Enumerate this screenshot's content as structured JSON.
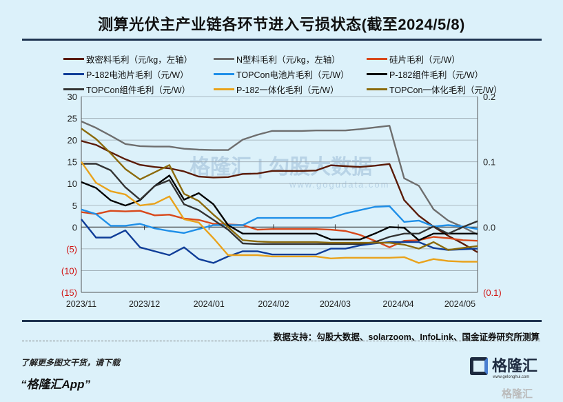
{
  "chart_data": {
    "type": "line",
    "title": "测算光伏主产业链各环节进入亏损状态(截至2024/5/8)",
    "x_tick_labels": [
      "2023/11",
      "2023/12",
      "2024/01",
      "2024/02",
      "2024/03",
      "2024/04",
      "2024/05"
    ],
    "x_tick_index": [
      0,
      4.3,
      8.7,
      13.1,
      17.3,
      21.6,
      25.8
    ],
    "n_points": 28,
    "y_left": {
      "range": [
        -15,
        30
      ],
      "ticks": [
        30,
        25,
        20,
        15,
        10,
        5,
        0,
        -5,
        -10,
        -15
      ],
      "tick_labels": [
        "30",
        "25",
        "20",
        "15",
        "10",
        "5",
        "0",
        "(5)",
        "(10)",
        "(15)"
      ]
    },
    "y_right": {
      "range": [
        -0.1,
        0.2
      ],
      "ticks": [
        0.2,
        0.1,
        0.0,
        -0.1
      ],
      "tick_labels": [
        "0.2",
        "0.1",
        "0.0",
        "(0.1)"
      ]
    },
    "grid": true,
    "legend_position": "top",
    "series": [
      {
        "name": "致密料毛利（元/kg，左轴）",
        "axis": "left",
        "color": "#5a1a06",
        "values": [
          19.8,
          18.9,
          17.2,
          15.6,
          14.3,
          13.8,
          13.5,
          12.8,
          11.6,
          11.4,
          11.5,
          12.2,
          12.3,
          12.9,
          12.9,
          12.9,
          13.0,
          14.2,
          14.0,
          13.8,
          14.1,
          14.5,
          6.2,
          2.6,
          0.1,
          -2.0,
          -3.8,
          -5.8
        ]
      },
      {
        "name": "N型料毛利（元/kg，左轴）",
        "axis": "left",
        "color": "#6e6e6e",
        "values": [
          24.3,
          22.8,
          21.0,
          19.1,
          18.6,
          18.5,
          18.5,
          18.0,
          17.8,
          17.7,
          17.7,
          20.1,
          21.2,
          22.1,
          22.1,
          22.1,
          22.2,
          22.2,
          22.2,
          22.5,
          22.9,
          23.3,
          11.2,
          9.5,
          4.1,
          1.5,
          0.0,
          -1.7
        ]
      },
      {
        "name": "硅片毛利（元/W）",
        "axis": "right",
        "color": "#d8481b",
        "values": [
          0.023,
          0.02,
          0.025,
          0.024,
          0.025,
          0.018,
          0.019,
          0.013,
          0.011,
          0.005,
          0.004,
          0.003,
          -0.004,
          -0.003,
          -0.003,
          -0.003,
          -0.003,
          -0.004,
          -0.006,
          -0.012,
          -0.021,
          -0.031,
          -0.021,
          -0.02,
          -0.015,
          -0.017,
          -0.02,
          -0.021
        ]
      },
      {
        "name": "P-182电池片毛利（元/W）",
        "axis": "right",
        "color": "#0f3d98",
        "values": [
          0.012,
          -0.016,
          -0.016,
          -0.005,
          -0.031,
          -0.037,
          -0.043,
          -0.031,
          -0.049,
          -0.055,
          -0.045,
          -0.037,
          -0.037,
          -0.042,
          -0.042,
          -0.042,
          -0.042,
          -0.033,
          -0.033,
          -0.028,
          -0.025,
          -0.023,
          -0.023,
          -0.023,
          -0.032,
          -0.035,
          -0.034,
          -0.033
        ]
      },
      {
        "name": "TOPCon电池片毛利（元/W）",
        "axis": "right",
        "color": "#1f8fe8",
        "values": [
          0.027,
          0.02,
          0.002,
          0.002,
          0.005,
          -0.002,
          -0.006,
          -0.009,
          -0.003,
          0.003,
          0.003,
          0.003,
          0.014,
          0.014,
          0.014,
          0.014,
          0.014,
          0.014,
          0.021,
          0.026,
          0.031,
          0.032,
          0.008,
          0.01,
          0.001,
          0.003,
          0.001,
          -0.003
        ]
      },
      {
        "name": "P-182组件毛利（元/W）",
        "axis": "right",
        "color": "#000000",
        "values": [
          0.069,
          0.06,
          0.041,
          0.033,
          0.041,
          0.063,
          0.079,
          0.042,
          0.052,
          0.035,
          0.003,
          -0.01,
          -0.01,
          -0.01,
          -0.01,
          -0.01,
          -0.01,
          -0.019,
          -0.019,
          -0.019,
          -0.01,
          0.0,
          -0.001,
          -0.02,
          -0.01,
          -0.01,
          -0.01,
          -0.01
        ]
      },
      {
        "name": "TOPCon组件毛利（元/W）",
        "axis": "right",
        "color": "#333333",
        "values": [
          0.097,
          0.097,
          0.087,
          0.061,
          0.042,
          0.063,
          0.072,
          0.035,
          0.026,
          0.011,
          -0.004,
          -0.025,
          -0.026,
          -0.026,
          -0.026,
          -0.026,
          -0.026,
          -0.026,
          -0.026,
          -0.026,
          -0.023,
          -0.015,
          -0.01,
          -0.01,
          0.001,
          -0.01,
          0.0,
          0.009
        ]
      },
      {
        "name": "P-182一体化毛利（元/W）",
        "axis": "right",
        "color": "#e9a21b",
        "values": [
          0.1,
          0.068,
          0.055,
          0.05,
          0.033,
          0.036,
          0.047,
          0.012,
          0.007,
          -0.017,
          -0.043,
          -0.043,
          -0.043,
          -0.045,
          -0.045,
          -0.045,
          -0.045,
          -0.048,
          -0.047,
          -0.047,
          -0.047,
          -0.047,
          -0.046,
          -0.055,
          -0.049,
          -0.052,
          -0.053,
          -0.053
        ]
      },
      {
        "name": "TOPCon一体化毛利（元/W）",
        "axis": "right",
        "color": "#8b6a0c",
        "values": [
          0.151,
          0.135,
          0.113,
          0.089,
          0.073,
          0.084,
          0.095,
          0.051,
          0.04,
          0.019,
          0.0,
          -0.02,
          -0.022,
          -0.023,
          -0.023,
          -0.023,
          -0.023,
          -0.024,
          -0.024,
          -0.024,
          -0.024,
          -0.024,
          -0.027,
          -0.033,
          -0.023,
          -0.035,
          -0.032,
          -0.029
        ]
      }
    ],
    "watermark": "格隆汇 | 勾股大数据 www.gogudata.com"
  },
  "source": "数据支持：勾股大数据、solarzoom、InfoLink、国金证券研究所测算",
  "promo": {
    "line1": "了解更多图文干货，请下载",
    "line2": "“格隆汇App”"
  },
  "logo": {
    "name": "格隆汇",
    "url": "www.gelonghui.com"
  },
  "corner_watermark": "格隆汇",
  "colors": {
    "background": "#dcf1fa",
    "negative_tick": "#d01010"
  }
}
